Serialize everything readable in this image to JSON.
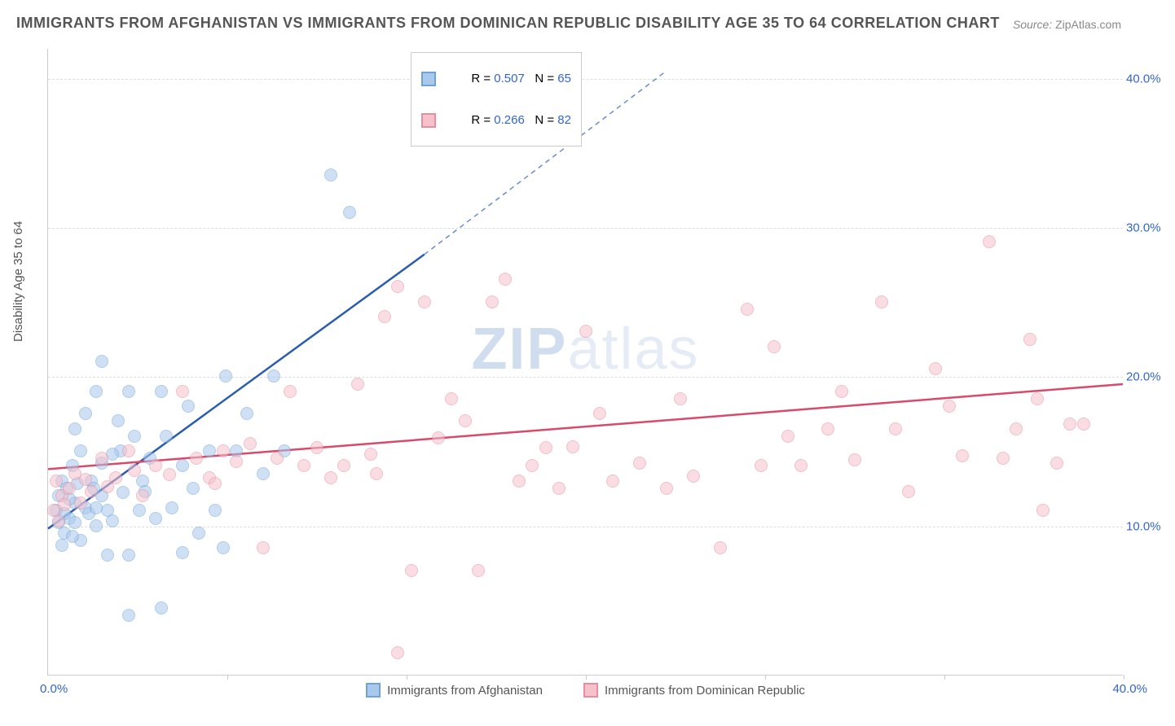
{
  "title": "IMMIGRANTS FROM AFGHANISTAN VS IMMIGRANTS FROM DOMINICAN REPUBLIC DISABILITY AGE 35 TO 64 CORRELATION CHART",
  "source_label": "Source:",
  "source_value": "ZipAtlas.com",
  "watermark": {
    "bold": "ZIP",
    "rest": "atlas"
  },
  "ylabel": "Disability Age 35 to 64",
  "chart": {
    "type": "scatter",
    "xlim": [
      0,
      40
    ],
    "ylim": [
      0,
      42
    ],
    "ytick_labels": [
      "10.0%",
      "20.0%",
      "30.0%",
      "40.0%"
    ],
    "ytick_values": [
      10,
      20,
      30,
      40
    ],
    "xtick_start": "0.0%",
    "xtick_end": "40.0%",
    "x_minor_ticks": [
      6.67,
      13.33,
      20,
      26.67,
      33.33,
      40
    ],
    "grid_color": "#dddddd",
    "background_color": "#ffffff",
    "marker_radius": 8,
    "marker_opacity": 0.55
  },
  "series": [
    {
      "key": "afghanistan",
      "label": "Immigrants from Afghanistan",
      "fill": "#a8c8ec",
      "stroke": "#6fa3d8",
      "line_color": "#2a5db0",
      "r_label": "R = ",
      "r_value": "0.507",
      "n_label": "N = ",
      "n_value": "65",
      "trend": {
        "x1": 0,
        "y1": 9.8,
        "x2": 14,
        "y2": 28.2,
        "x2_dash": 23,
        "y2_dash": 40.5
      },
      "points": [
        [
          0.4,
          12
        ],
        [
          0.3,
          11
        ],
        [
          0.5,
          13
        ],
        [
          0.8,
          10.5
        ],
        [
          0.6,
          9.5
        ],
        [
          1.0,
          10.2
        ],
        [
          1.2,
          9.0
        ],
        [
          0.5,
          8.7
        ],
        [
          1.4,
          11.2
        ],
        [
          1.8,
          10
        ],
        [
          2.0,
          12
        ],
        [
          1.6,
          13
        ],
        [
          0.9,
          14
        ],
        [
          1.2,
          15
        ],
        [
          2.2,
          11
        ],
        [
          2.4,
          10.3
        ],
        [
          2.7,
          15
        ],
        [
          3.0,
          19
        ],
        [
          1.8,
          19
        ],
        [
          2.0,
          21
        ],
        [
          3.4,
          11
        ],
        [
          3.5,
          13
        ],
        [
          4.0,
          10.5
        ],
        [
          4.2,
          19
        ],
        [
          4.6,
          11.2
        ],
        [
          5.0,
          14
        ],
        [
          5.2,
          18
        ],
        [
          5.6,
          9.5
        ],
        [
          6.0,
          15
        ],
        [
          5.0,
          8.2
        ],
        [
          3.0,
          8.0
        ],
        [
          2.2,
          8.0
        ],
        [
          4.2,
          4.5
        ],
        [
          3.0,
          4.0
        ],
        [
          6.2,
          11
        ],
        [
          6.6,
          20
        ],
        [
          7.0,
          15
        ],
        [
          7.4,
          17.5
        ],
        [
          8.0,
          13.5
        ],
        [
          8.4,
          20
        ],
        [
          8.8,
          15
        ],
        [
          6.5,
          8.5
        ],
        [
          10.5,
          33.5
        ],
        [
          11.2,
          31
        ],
        [
          1.0,
          11.5
        ],
        [
          1.5,
          10.8
        ],
        [
          0.7,
          12.5
        ],
        [
          2.8,
          12.2
        ],
        [
          3.2,
          16
        ],
        [
          3.8,
          14.5
        ],
        [
          1.0,
          16.5
        ],
        [
          1.4,
          17.5
        ],
        [
          0.6,
          10.8
        ],
        [
          0.8,
          11.8
        ],
        [
          1.1,
          12.8
        ],
        [
          2.0,
          14.2
        ],
        [
          2.6,
          17
        ],
        [
          1.8,
          11.2
        ],
        [
          0.4,
          10.2
        ],
        [
          0.9,
          9.3
        ],
        [
          1.7,
          12.5
        ],
        [
          2.4,
          14.8
        ],
        [
          3.6,
          12.3
        ],
        [
          4.4,
          16
        ],
        [
          5.4,
          12.5
        ]
      ]
    },
    {
      "key": "dominican",
      "label": "Immigrants from Dominican Republic",
      "fill": "#f5c2cb",
      "stroke": "#e68da0",
      "line_color": "#d94a6a",
      "r_label": "R = ",
      "r_value": "0.266",
      "n_label": "N = ",
      "n_value": "82",
      "trend": {
        "x1": 0,
        "y1": 13.8,
        "x2": 40,
        "y2": 19.5
      },
      "points": [
        [
          0.3,
          13
        ],
        [
          0.5,
          12
        ],
        [
          0.8,
          12.5
        ],
        [
          0.2,
          11
        ],
        [
          1.0,
          13.5
        ],
        [
          0.4,
          10.3
        ],
        [
          1.2,
          11.5
        ],
        [
          1.6,
          12.3
        ],
        [
          2.0,
          14.5
        ],
        [
          2.5,
          13.2
        ],
        [
          3.0,
          15
        ],
        [
          3.5,
          12
        ],
        [
          4.0,
          14
        ],
        [
          5.0,
          19
        ],
        [
          5.5,
          14.5
        ],
        [
          6.0,
          13.2
        ],
        [
          6.5,
          15
        ],
        [
          7.0,
          14.3
        ],
        [
          8.0,
          8.5
        ],
        [
          8.5,
          14.5
        ],
        [
          9.0,
          19
        ],
        [
          9.5,
          14
        ],
        [
          10.0,
          15.2
        ],
        [
          11.0,
          14
        ],
        [
          12.0,
          14.8
        ],
        [
          13.0,
          1.5
        ],
        [
          13.5,
          7.0
        ],
        [
          12.5,
          24
        ],
        [
          13.0,
          26
        ],
        [
          14.0,
          25
        ],
        [
          15.0,
          18.5
        ],
        [
          15.5,
          17
        ],
        [
          16.0,
          7.0
        ],
        [
          16.5,
          25
        ],
        [
          17.0,
          26.5
        ],
        [
          18.0,
          14
        ],
        [
          18.5,
          15.2
        ],
        [
          19.0,
          12.5
        ],
        [
          20.0,
          23
        ],
        [
          20.5,
          17.5
        ],
        [
          21.0,
          13
        ],
        [
          22.0,
          14.2
        ],
        [
          23.0,
          12.5
        ],
        [
          24.0,
          13.3
        ],
        [
          25.0,
          8.5
        ],
        [
          26.0,
          24.5
        ],
        [
          27.0,
          22
        ],
        [
          28.0,
          14
        ],
        [
          29.0,
          16.5
        ],
        [
          30.0,
          14.4
        ],
        [
          31.0,
          25
        ],
        [
          31.5,
          16.5
        ],
        [
          32.0,
          12.3
        ],
        [
          33.0,
          20.5
        ],
        [
          34.0,
          14.7
        ],
        [
          35.0,
          29
        ],
        [
          36.0,
          16.5
        ],
        [
          36.5,
          22.5
        ],
        [
          37.0,
          11
        ],
        [
          38.0,
          16.8
        ],
        [
          38.5,
          16.8
        ],
        [
          0.6,
          11.4
        ],
        [
          1.4,
          13.1
        ],
        [
          2.2,
          12.6
        ],
        [
          3.2,
          13.7
        ],
        [
          4.5,
          13.4
        ],
        [
          6.2,
          12.8
        ],
        [
          7.5,
          15.5
        ],
        [
          10.5,
          13.2
        ],
        [
          11.5,
          19.5
        ],
        [
          12.2,
          13.5
        ],
        [
          14.5,
          15.9
        ],
        [
          17.5,
          13.0
        ],
        [
          19.5,
          15.3
        ],
        [
          23.5,
          18.5
        ],
        [
          27.5,
          16.0
        ],
        [
          29.5,
          19.0
        ],
        [
          33.5,
          18.0
        ],
        [
          35.5,
          14.5
        ],
        [
          36.8,
          18.5
        ],
        [
          37.5,
          14.2
        ],
        [
          26.5,
          14.0
        ]
      ]
    }
  ]
}
